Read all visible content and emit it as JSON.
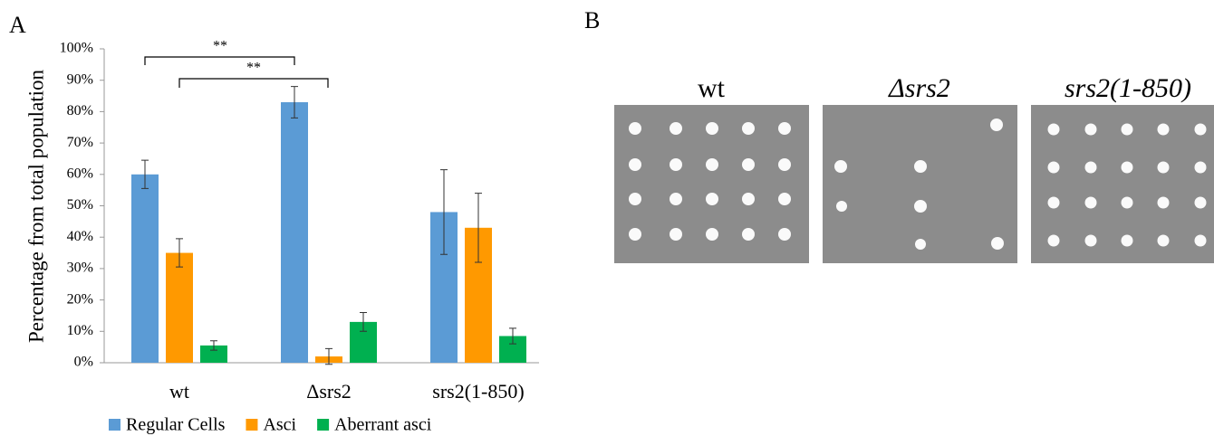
{
  "chart_data": {
    "type": "bar",
    "panel_label": "A",
    "ylabel": "Percentage from total population",
    "categories": [
      "wt",
      "Δsrs2",
      "srs2(1-850)"
    ],
    "series": [
      {
        "name": "Regular Cells",
        "color": "#5b9bd5",
        "values": [
          60,
          83,
          48
        ],
        "errors": [
          4.5,
          5,
          13.5
        ]
      },
      {
        "name": "Asci",
        "color": "#ff9900",
        "values": [
          35,
          2,
          43
        ],
        "errors": [
          4.5,
          2.5,
          11
        ]
      },
      {
        "name": "Aberrant asci",
        "color": "#00b050",
        "values": [
          5.5,
          13,
          8.5
        ],
        "errors": [
          1.5,
          3,
          2.5
        ]
      }
    ],
    "ylim": [
      0,
      100
    ],
    "yticks": [
      {
        "value": 0,
        "label": "0%"
      },
      {
        "value": 10,
        "label": "10%"
      },
      {
        "value": 20,
        "label": "20%"
      },
      {
        "value": 30,
        "label": "30%"
      },
      {
        "value": 40,
        "label": "40%"
      },
      {
        "value": 50,
        "label": "50%"
      },
      {
        "value": 60,
        "label": "60%"
      },
      {
        "value": 70,
        "label": "70%"
      },
      {
        "value": 80,
        "label": "80%"
      },
      {
        "value": 90,
        "label": "90%"
      },
      {
        "value": 100,
        "label": "100%"
      }
    ],
    "annotations": [
      "**",
      "**"
    ],
    "grid": false,
    "legend": "bottom"
  },
  "panel_b": {
    "label": "B",
    "titles": [
      "wt",
      "Δsrs2",
      "srs2(1-850)"
    ]
  }
}
